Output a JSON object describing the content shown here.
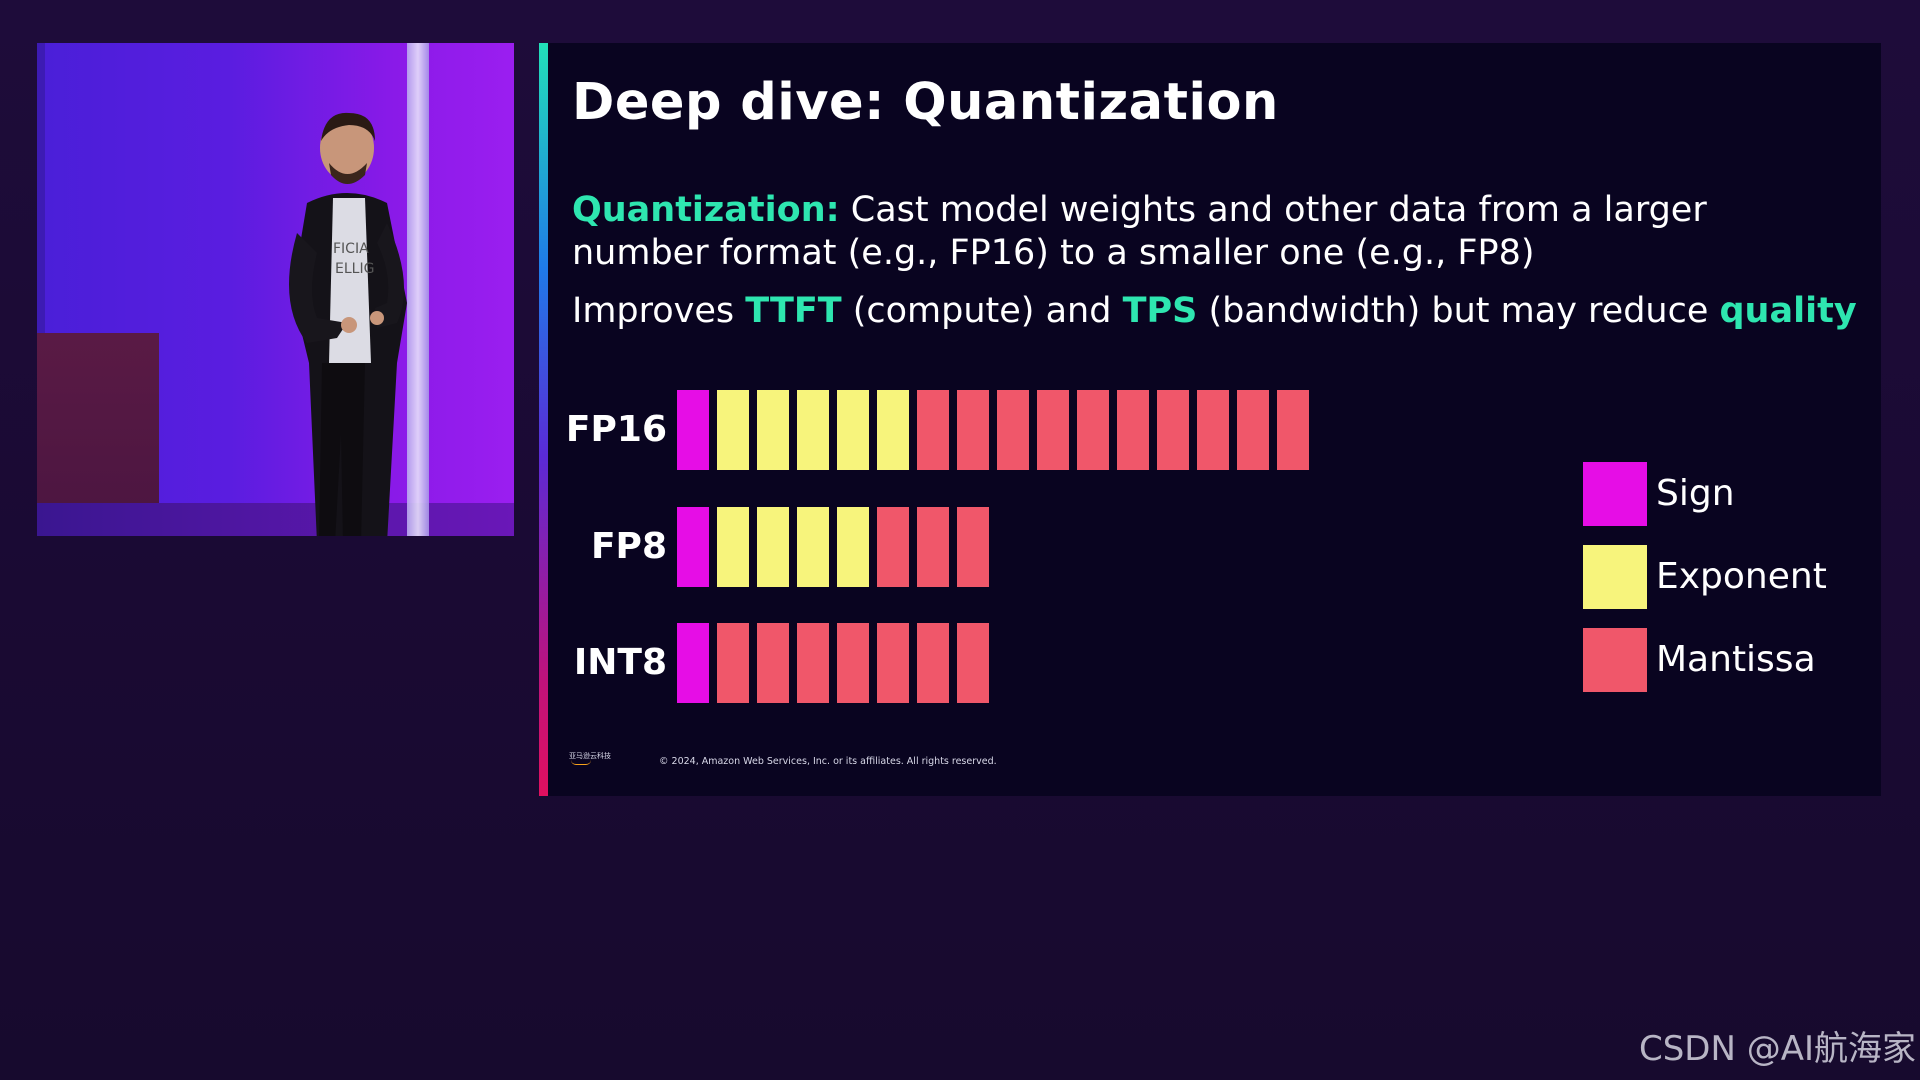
{
  "slide": {
    "title": "Deep dive: Quantization",
    "definition": {
      "term": "Quantization:",
      "text": " Cast model weights and other data from a larger number format (e.g., FP16) to a smaller one (e.g., FP8)"
    },
    "improves": {
      "prefix": "Improves ",
      "ttft": "TTFT",
      "mid1": " (compute) and ",
      "tps": "TPS",
      "mid2": " (bandwidth) but may reduce ",
      "quality": "quality"
    },
    "formats": [
      {
        "label": "FP16",
        "sign_bits": 1,
        "exponent_bits": 5,
        "mantissa_bits": 10
      },
      {
        "label": "FP8",
        "sign_bits": 1,
        "exponent_bits": 4,
        "mantissa_bits": 3
      },
      {
        "label": "INT8",
        "sign_bits": 1,
        "exponent_bits": 0,
        "mantissa_bits": 7
      }
    ],
    "legend": [
      {
        "label": "Sign",
        "color": "#e60de6"
      },
      {
        "label": "Exponent",
        "color": "#f7f47c"
      },
      {
        "label": "Mantissa",
        "color": "#f0576a"
      }
    ],
    "logo_text": "亚马逊云科技",
    "copyright": "© 2024, Amazon Web Services, Inc. or its affiliates. All rights reserved."
  },
  "colors": {
    "highlight": "#2ee6b0",
    "sign": "#e60de6",
    "exponent": "#f7f47c",
    "mantissa": "#f0576a",
    "slide_background": "#090420"
  },
  "watermark": "CSDN @AI航海家"
}
